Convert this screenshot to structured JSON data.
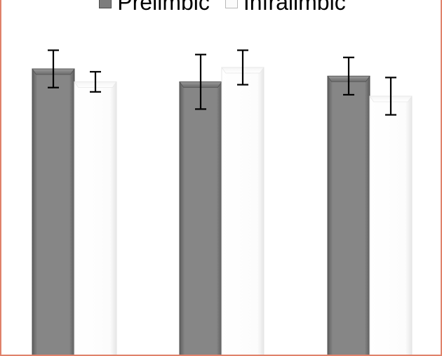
{
  "chart_data": {
    "type": "bar",
    "categories": [
      "",
      "",
      ""
    ],
    "series": [
      {
        "name": "Prelimbic",
        "color": "#7d7d7d",
        "values": [
          100,
          95.5,
          97.5
        ],
        "error": [
          6.5,
          9.5,
          6.5
        ]
      },
      {
        "name": "Infralimbic",
        "color": "#fbfbfb",
        "values": [
          95.5,
          100.5,
          90.5
        ],
        "error": [
          3.5,
          6,
          6.5
        ]
      }
    ],
    "title": "",
    "xlabel": "",
    "ylabel": "",
    "ylim": [
      0,
      124
    ],
    "grid": false,
    "legend": "top"
  },
  "colors": {
    "frame_border": "#e0826a",
    "errorbar": "#000000"
  }
}
